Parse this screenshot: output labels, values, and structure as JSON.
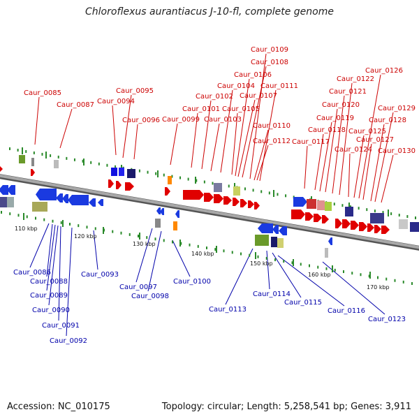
{
  "title": "Chloroflexus aurantiacus J-10-fl, complete genome",
  "accession": "Accession: NC_010175",
  "summary": "Topology: circular; Length: 5,258,541 bp; Genes: 3,911",
  "colors": {
    "forward_label": "#cc0000",
    "reverse_label": "#0000aa",
    "tick": "#2a8a2a",
    "backbone": "#909090"
  },
  "scale_labels": [
    "110 kbp",
    "120 kbp",
    "130 kbp",
    "140 kbp",
    "150 kbp",
    "160 kbp",
    "170 kbp"
  ],
  "forward_genes": [
    "Caur_0085",
    "Caur_0087",
    "Caur_0094",
    "Caur_0095",
    "Caur_0096",
    "Caur_0099",
    "Caur_0101",
    "Caur_0102",
    "Caur_0103",
    "Caur_0104",
    "Caur_0105",
    "Caur_0106",
    "Caur_0107",
    "Caur_0108",
    "Caur_0109",
    "Caur_0110",
    "Caur_0111",
    "Caur_0112",
    "Caur_0117",
    "Caur_0118",
    "Caur_0119",
    "Caur_0120",
    "Caur_0121",
    "Caur_0122",
    "Caur_0124",
    "Caur_0125",
    "Caur_0126",
    "Caur_0127",
    "Caur_0128",
    "Caur_0129",
    "Caur_0130"
  ],
  "reverse_genes": [
    "Caur_0086",
    "Caur_0088",
    "Caur_0089",
    "Caur_0090",
    "Caur_0091",
    "Caur_0092",
    "Caur_0093",
    "Caur_0097",
    "Caur_0098",
    "Caur_0100",
    "Caur_0113",
    "Caur_0114",
    "Caur_0115",
    "Caur_0116",
    "Caur_0123"
  ]
}
